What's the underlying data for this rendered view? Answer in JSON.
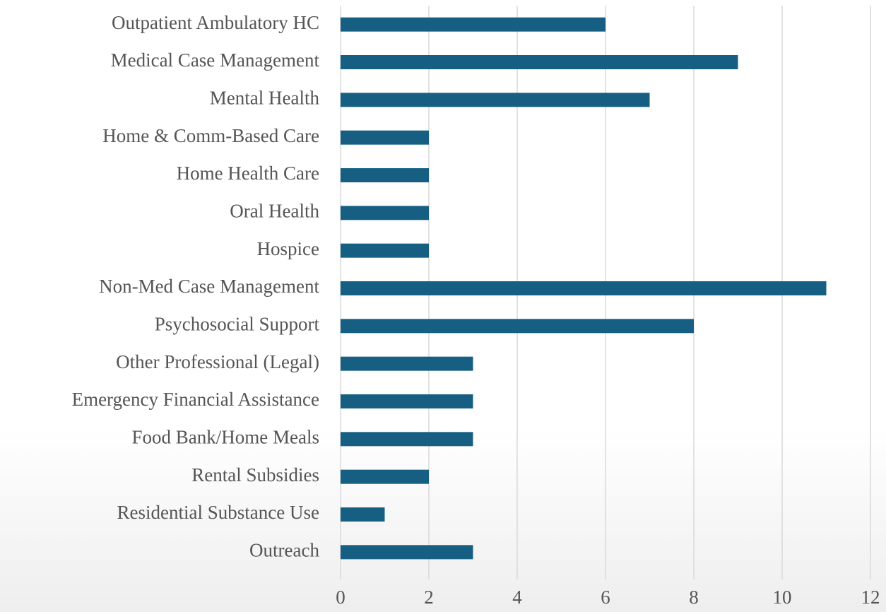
{
  "chart_data": {
    "type": "bar",
    "orientation": "horizontal",
    "categories": [
      "Outpatient Ambulatory HC",
      "Medical Case Management",
      "Mental Health",
      "Home & Comm-Based Care",
      "Home Health Care",
      "Oral Health",
      "Hospice",
      "Non-Med Case Management",
      "Psychosocial Support",
      "Other Professional (Legal)",
      "Emergency Financial Assistance",
      "Food Bank/Home Meals",
      "Rental Subsidies",
      "Residential Substance Use",
      "Outreach"
    ],
    "values": [
      6,
      9,
      7,
      2,
      2,
      2,
      2,
      11,
      8,
      3,
      3,
      3,
      2,
      1,
      3
    ],
    "color": "#175f82",
    "xlim": [
      0,
      12
    ],
    "xticks": [
      0,
      2,
      4,
      6,
      8,
      10,
      12
    ],
    "grid": true
  }
}
